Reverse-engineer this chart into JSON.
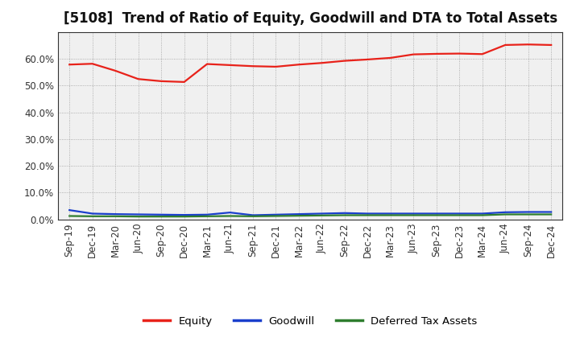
{
  "title": "[5108]  Trend of Ratio of Equity, Goodwill and DTA to Total Assets",
  "x_labels": [
    "Sep-19",
    "Dec-19",
    "Mar-20",
    "Jun-20",
    "Sep-20",
    "Dec-20",
    "Mar-21",
    "Jun-21",
    "Sep-21",
    "Dec-21",
    "Mar-22",
    "Jun-22",
    "Sep-22",
    "Dec-22",
    "Mar-23",
    "Jun-23",
    "Sep-23",
    "Dec-23",
    "Mar-24",
    "Jun-24",
    "Sep-24",
    "Dec-24"
  ],
  "equity": [
    0.578,
    0.581,
    0.555,
    0.524,
    0.516,
    0.513,
    0.58,
    0.576,
    0.572,
    0.57,
    0.578,
    0.584,
    0.592,
    0.597,
    0.603,
    0.616,
    0.618,
    0.619,
    0.617,
    0.651,
    0.653,
    0.651
  ],
  "goodwill": [
    0.035,
    0.022,
    0.02,
    0.019,
    0.018,
    0.017,
    0.018,
    0.026,
    0.016,
    0.018,
    0.02,
    0.022,
    0.024,
    0.022,
    0.022,
    0.022,
    0.022,
    0.022,
    0.022,
    0.027,
    0.028,
    0.028
  ],
  "dta": [
    0.013,
    0.012,
    0.012,
    0.011,
    0.011,
    0.011,
    0.012,
    0.013,
    0.012,
    0.013,
    0.014,
    0.015,
    0.016,
    0.016,
    0.016,
    0.016,
    0.016,
    0.016,
    0.016,
    0.019,
    0.019,
    0.019
  ],
  "equity_color": "#e8221a",
  "goodwill_color": "#1a3fcc",
  "dta_color": "#2e7d2e",
  "background_color": "#ffffff",
  "plot_bg_color": "#f0f0f0",
  "grid_color": "#888888",
  "ylim": [
    0.0,
    0.7
  ],
  "yticks": [
    0.0,
    0.1,
    0.2,
    0.3,
    0.4,
    0.5,
    0.6
  ],
  "legend_labels": [
    "Equity",
    "Goodwill",
    "Deferred Tax Assets"
  ],
  "title_fontsize": 12,
  "tick_fontsize": 8.5
}
